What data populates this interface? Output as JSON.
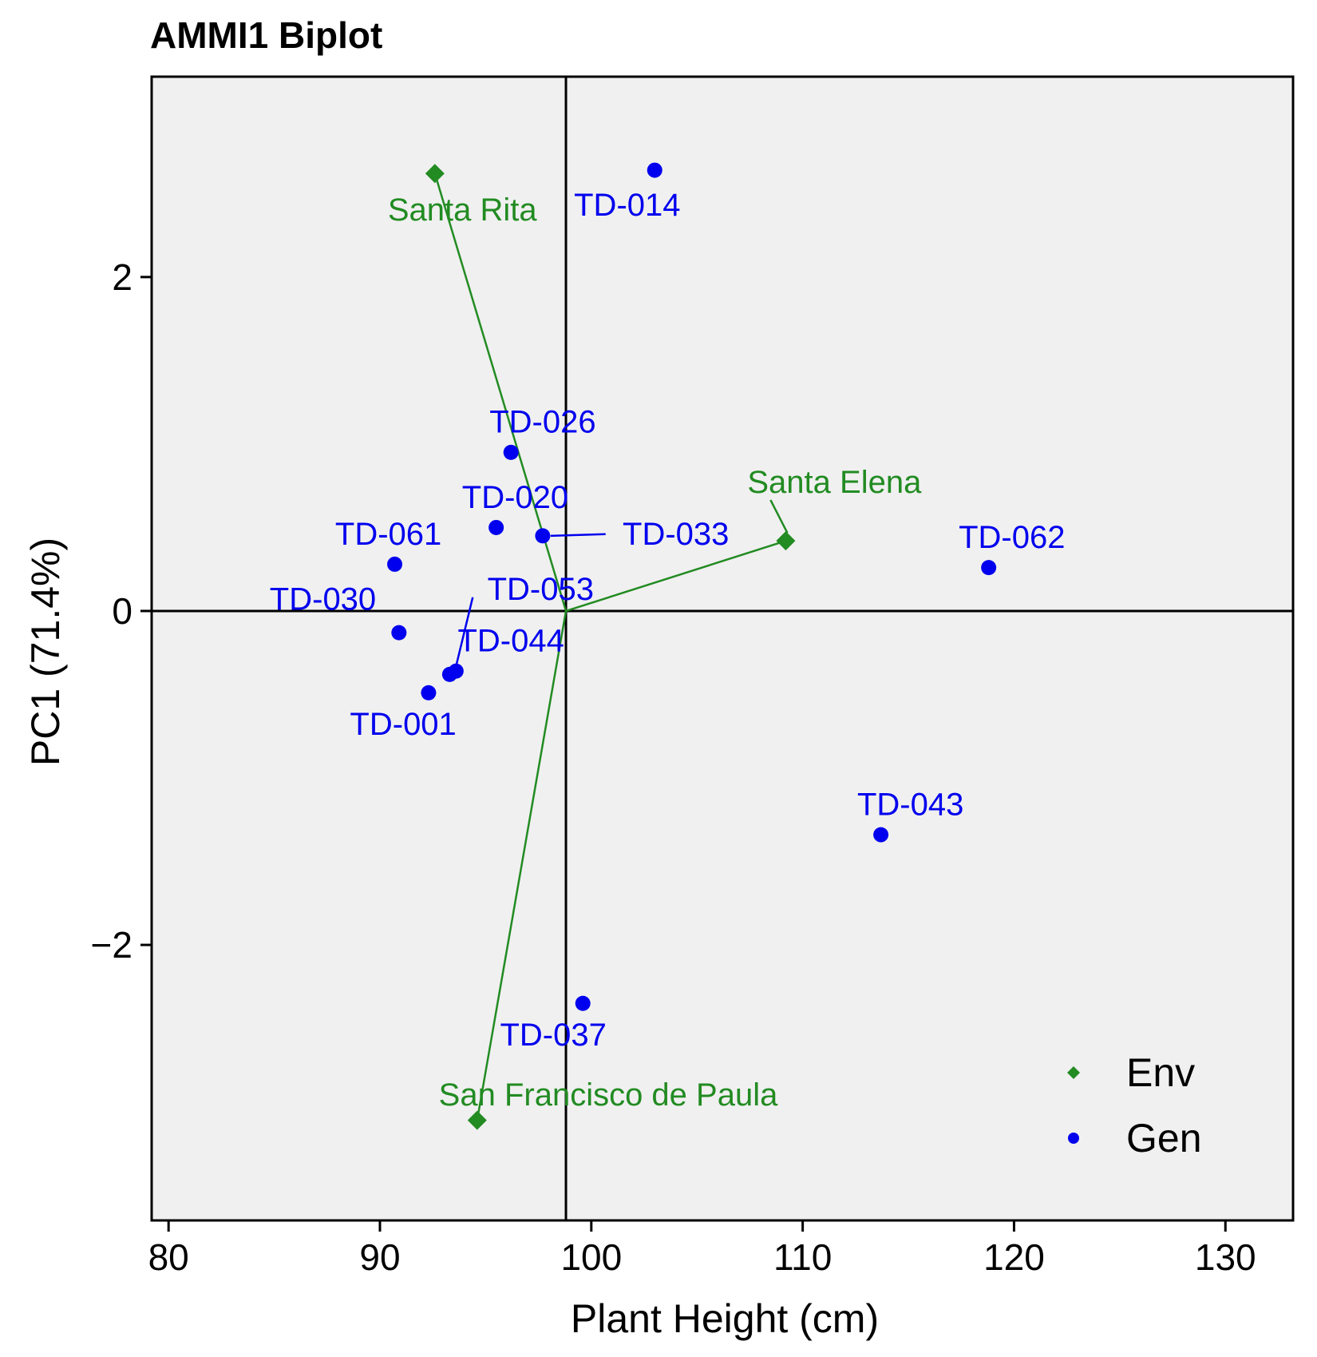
{
  "chart_data": {
    "type": "scatter",
    "title": "AMMI1 Biplot",
    "xlabel": "Plant Height (cm)",
    "ylabel": "PC1 (71.4%)",
    "xlim": [
      79.2,
      133.2
    ],
    "ylim": [
      -3.65,
      3.2
    ],
    "xticks": [
      80,
      90,
      100,
      110,
      120,
      130
    ],
    "xtick_labels": [
      "80",
      "90",
      "100",
      "110",
      "120",
      "130"
    ],
    "yticks": [
      -2,
      0,
      2
    ],
    "ytick_labels": [
      "−2",
      "0",
      "2"
    ],
    "origin": {
      "x": 98.8,
      "y": 0
    },
    "colors": {
      "Env": "#228B22",
      "Gen": "#0000ee",
      "panel": "#f0f0f0"
    },
    "legend": {
      "position": "bottom-right",
      "entries": [
        {
          "label": "Env",
          "marker": "diamond",
          "color": "#228B22"
        },
        {
          "label": "Gen",
          "marker": "circle",
          "color": "#0000ee"
        }
      ]
    },
    "series": [
      {
        "name": "Env",
        "marker": "diamond",
        "points": [
          {
            "label": "Santa Rita",
            "x": 92.6,
            "y": 2.62,
            "lx": 93.9,
            "ly": 2.4
          },
          {
            "label": "Santa Elena",
            "x": 109.2,
            "y": 0.42,
            "lx": 111.5,
            "ly": 0.77,
            "leader": true
          },
          {
            "label": "San Francisco de Paula",
            "x": 94.6,
            "y": -3.05,
            "lx": 100.8,
            "ly": -2.9
          }
        ]
      },
      {
        "name": "Gen",
        "marker": "circle",
        "points": [
          {
            "label": "TD-014",
            "x": 103.0,
            "y": 2.64,
            "lx": 101.7,
            "ly": 2.43
          },
          {
            "label": "TD-026",
            "x": 96.2,
            "y": 0.95,
            "lx": 97.7,
            "ly": 1.13
          },
          {
            "label": "TD-020",
            "x": 95.5,
            "y": 0.5,
            "lx": 96.4,
            "ly": 0.68
          },
          {
            "label": "TD-033",
            "x": 97.7,
            "y": 0.45,
            "lx": 104.0,
            "ly": 0.46,
            "leader": true
          },
          {
            "label": "TD-061",
            "x": 90.7,
            "y": 0.28,
            "lx": 90.4,
            "ly": 0.46
          },
          {
            "label": "TD-062",
            "x": 118.8,
            "y": 0.26,
            "lx": 119.9,
            "ly": 0.44
          },
          {
            "label": "TD-053",
            "x": 93.6,
            "y": -0.36,
            "lx": 97.6,
            "ly": 0.13,
            "leader": true
          },
          {
            "label": "TD-030",
            "x": 90.9,
            "y": -0.13,
            "lx": 87.3,
            "ly": 0.07
          },
          {
            "label": "TD-044",
            "x": 93.3,
            "y": -0.38,
            "lx": 96.2,
            "ly": -0.18
          },
          {
            "label": "TD-001",
            "x": 92.3,
            "y": -0.49,
            "lx": 91.1,
            "ly": -0.68
          },
          {
            "label": "TD-043",
            "x": 113.7,
            "y": -1.34,
            "lx": 115.1,
            "ly": -1.16
          },
          {
            "label": "TD-037",
            "x": 99.6,
            "y": -2.35,
            "lx": 98.2,
            "ly": -2.54
          }
        ]
      }
    ]
  }
}
